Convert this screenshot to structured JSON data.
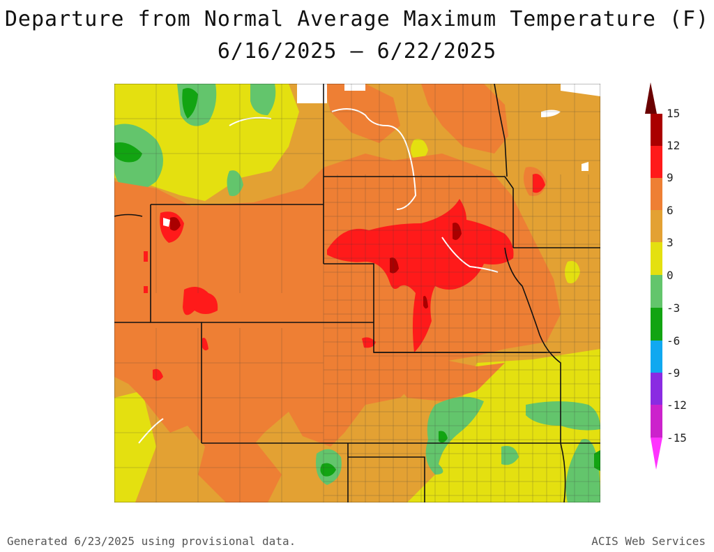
{
  "title": {
    "line1": "Departure from Normal Average Maximum Temperature (F)",
    "line2": "6/16/2025 – 6/22/2025"
  },
  "legend": {
    "ticks": [
      "15",
      "12",
      "9",
      "6",
      "3",
      "0",
      "-3",
      "-6",
      "-9",
      "-12",
      "-15"
    ],
    "colors": {
      "above_12": "#aa0000",
      "9_to_12": "#ff1a1a",
      "6_to_9": "#ee7f34",
      "3_to_6": "#e3a133",
      "0_to_3": "#e4e010",
      "-3_to_0": "#63c56c",
      "-6_to_-3": "#12a412",
      "-9_to_-6": "#10a8f0",
      "-12_to_-9": "#8a2be2",
      "below_-12": "#ff44ff",
      "max_arrow": "#6a0000",
      "min_arrow": "#ff33ff"
    }
  },
  "footer": {
    "left": "Generated 6/23/2025 using provisional data.",
    "right": "ACIS Web Services"
  }
}
